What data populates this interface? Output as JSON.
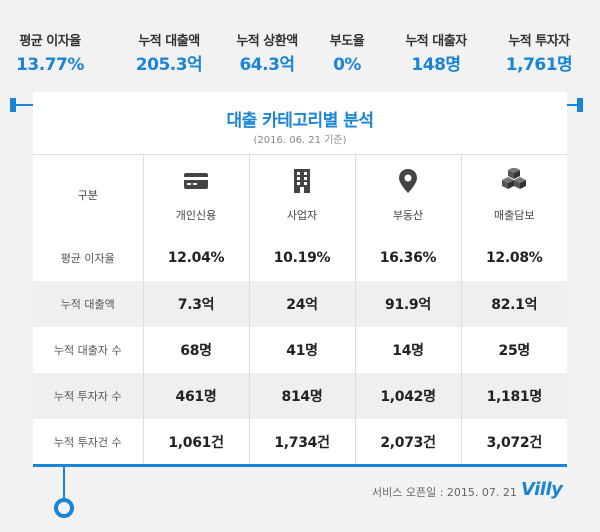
{
  "stats": [
    {
      "label": "평균 이자율",
      "value": "13.77%"
    },
    {
      "label": "누적 대출액",
      "value": "205.3억"
    },
    {
      "label": "누적 상환액",
      "value": "64.3억"
    },
    {
      "label": "부도율",
      "value": "0%"
    },
    {
      "label": "누적 대출자",
      "value": "148명"
    },
    {
      "label": "누적 투자자",
      "value": "1,761명"
    }
  ],
  "card": {
    "title": "대출 카테고리별 분석",
    "subtitle": "(2016. 06. 21 기준)"
  },
  "table": {
    "corner": "구분",
    "columns": [
      {
        "label": "개인신용",
        "icon": "credit-card-icon"
      },
      {
        "label": "사업자",
        "icon": "building-icon"
      },
      {
        "label": "부동산",
        "icon": "location-pin-icon"
      },
      {
        "label": "매출담보",
        "icon": "stacked-boxes-icon"
      }
    ],
    "rows": [
      {
        "label": "평균 이자율",
        "values": [
          "12.04%",
          "10.19%",
          "16.36%",
          "12.08%"
        ]
      },
      {
        "label": "누적 대출액",
        "values": [
          "7.3억",
          "24억",
          "91.9억",
          "82.1억"
        ]
      },
      {
        "label": "누적 대출자 수",
        "values": [
          "68명",
          "41명",
          "14명",
          "25명"
        ]
      },
      {
        "label": "누적 투자자 수",
        "values": [
          "461명",
          "814명",
          "1,042명",
          "1,181명"
        ]
      },
      {
        "label": "누적 투자건 수",
        "values": [
          "1,061건",
          "1,734건",
          "2,073건",
          "3,072건"
        ]
      }
    ]
  },
  "footer": {
    "note": "서비스 오픈일 : 2015. 07. 21",
    "brand": "Villy"
  },
  "colors": {
    "accent": "#1a84d6",
    "background": "#f2f2f2",
    "row_shade": "#efefef"
  }
}
